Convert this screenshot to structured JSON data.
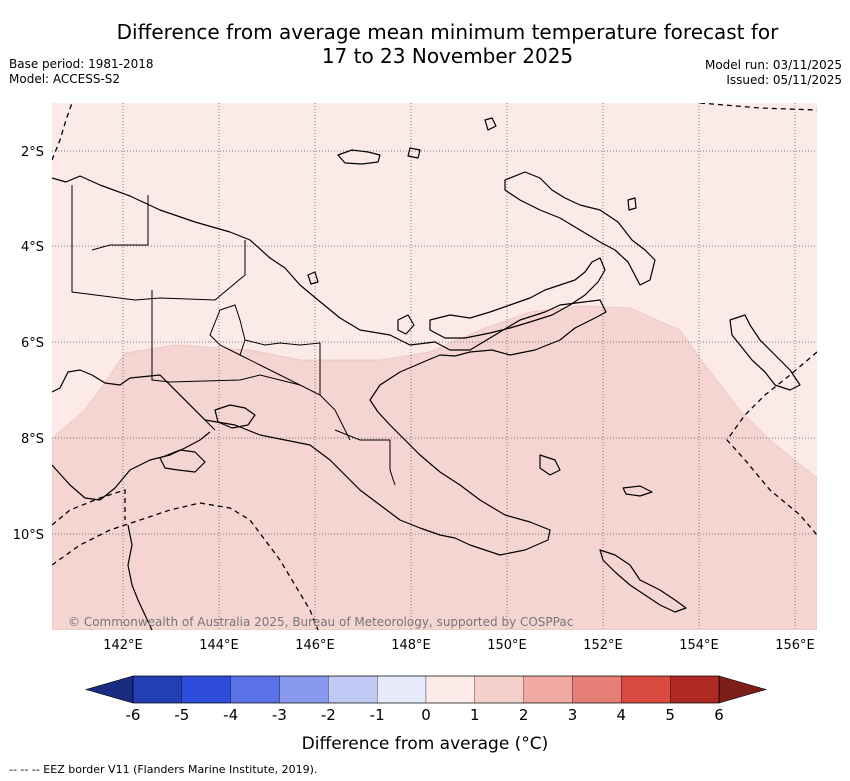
{
  "header": {
    "title_line1": "Difference from average mean minimum temperature forecast for",
    "title_line2": "17 to 23 November 2025",
    "base_period": "Base period: 1981-2018",
    "model": "Model: ACCESS-S2",
    "model_run": "Model run: 03/11/2025",
    "issued": "Issued: 05/11/2025"
  },
  "map": {
    "background_color": "#fbeae8",
    "anomaly_color": "#f5d5d2",
    "latitude_labels": [
      "2°S",
      "4°S",
      "6°S",
      "8°S",
      "10°S"
    ],
    "longitude_labels": [
      "142°E",
      "144°E",
      "146°E",
      "148°E",
      "150°E",
      "152°E",
      "154°E",
      "156°E"
    ],
    "copyright": "© Commonwealth of Australia 2025, Bureau of Meteorology, supported by COSPPac"
  },
  "colorbar": {
    "tick_labels": [
      "-6",
      "-5",
      "-4",
      "-3",
      "-2",
      "-1",
      "0",
      "1",
      "2",
      "3",
      "4",
      "5",
      "6"
    ],
    "bin_colors": [
      "#233fb4",
      "#2f4ddd",
      "#5a72e6",
      "#8898ec",
      "#c0c8f4",
      "#e6eafb",
      "#fcebe8",
      "#f5cfc9",
      "#efa9a2",
      "#e57e76",
      "#d94a3f",
      "#ad2922"
    ],
    "under_color": "#1a2c80",
    "over_color": "#7d1e19",
    "label": "Difference from average (°C)"
  },
  "footer": {
    "legend": "--  --  -- EEZ border V11 (Flanders Marine Institute, 2019)."
  }
}
